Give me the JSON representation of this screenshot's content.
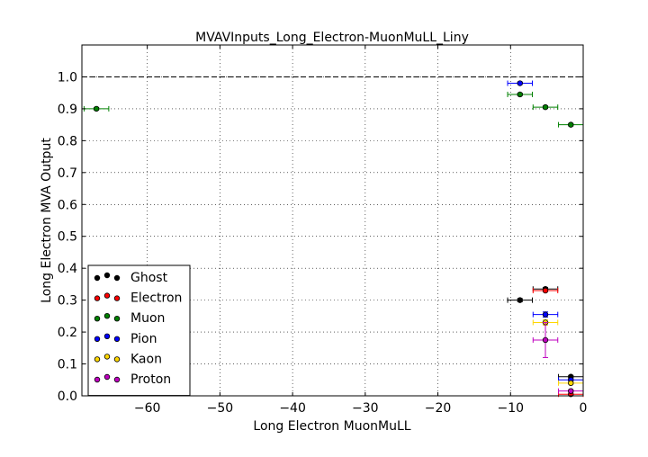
{
  "chart_data": {
    "type": "scatter",
    "title": "MVAVInputs_Long_Electron-MuonMuLL_Liny",
    "xlabel": "Long Electron MuonMuLL",
    "ylabel": "Long Electron MVA Output",
    "xlim": [
      -69,
      0
    ],
    "ylim": [
      0,
      1.1
    ],
    "xticks": [
      -60,
      -50,
      -40,
      -30,
      -20,
      -10,
      0
    ],
    "xtick_labels": [
      "−60",
      "−50",
      "−40",
      "−30",
      "−20",
      "−10",
      "0"
    ],
    "yticks": [
      0.0,
      0.1,
      0.2,
      0.3,
      0.4,
      0.5,
      0.6,
      0.7,
      0.8,
      0.9,
      1.0
    ],
    "ytick_labels": [
      "0.0",
      "0.1",
      "0.2",
      "0.3",
      "0.4",
      "0.5",
      "0.6",
      "0.7",
      "0.8",
      "0.9",
      "1.0"
    ],
    "grid": true,
    "reference_line": 1.0,
    "legend_position": "lower-left",
    "series": [
      {
        "name": "Ghost",
        "color": "#000000",
        "points": [
          {
            "x": -8.7,
            "y": 0.3,
            "xerr": 1.7,
            "yerr": 0.005
          },
          {
            "x": -5.2,
            "y": 0.335,
            "xerr": 1.7,
            "yerr": 0.005
          },
          {
            "x": -1.7,
            "y": 0.06,
            "xerr": 1.7,
            "yerr": 0.004
          }
        ]
      },
      {
        "name": "Electron",
        "color": "#ff0000",
        "points": [
          {
            "x": -5.2,
            "y": 0.33,
            "xerr": 1.7,
            "yerr": 0.004
          },
          {
            "x": -1.7,
            "y": 0.005,
            "xerr": 1.7,
            "yerr": 0.002
          }
        ]
      },
      {
        "name": "Muon",
        "color": "#008000",
        "points": [
          {
            "x": -67.0,
            "y": 0.9,
            "xerr": 1.7,
            "yerr": 0.004
          },
          {
            "x": -8.7,
            "y": 0.945,
            "xerr": 1.7,
            "yerr": 0.004
          },
          {
            "x": -5.2,
            "y": 0.905,
            "xerr": 1.7,
            "yerr": 0.004
          },
          {
            "x": -1.7,
            "y": 0.85,
            "xerr": 1.7,
            "yerr": 0.004
          }
        ]
      },
      {
        "name": "Pion",
        "color": "#0000ff",
        "points": [
          {
            "x": -8.7,
            "y": 0.98,
            "xerr": 1.7,
            "yerr": 0.004
          },
          {
            "x": -5.2,
            "y": 0.255,
            "xerr": 1.7,
            "yerr": 0.008
          },
          {
            "x": -1.7,
            "y": 0.05,
            "xerr": 1.7,
            "yerr": 0.004
          }
        ]
      },
      {
        "name": "Kaon",
        "color": "#ffd700",
        "points": [
          {
            "x": -5.2,
            "y": 0.23,
            "xerr": 1.7,
            "yerr": 0.008
          },
          {
            "x": -1.7,
            "y": 0.04,
            "xerr": 1.7,
            "yerr": 0.004
          }
        ]
      },
      {
        "name": "Proton",
        "color": "#bf00bf",
        "points": [
          {
            "x": -5.2,
            "y": 0.175,
            "xerr": 1.7,
            "yerr": 0.055
          },
          {
            "x": -1.7,
            "y": 0.015,
            "xerr": 1.7,
            "yerr": 0.004
          }
        ]
      }
    ]
  }
}
